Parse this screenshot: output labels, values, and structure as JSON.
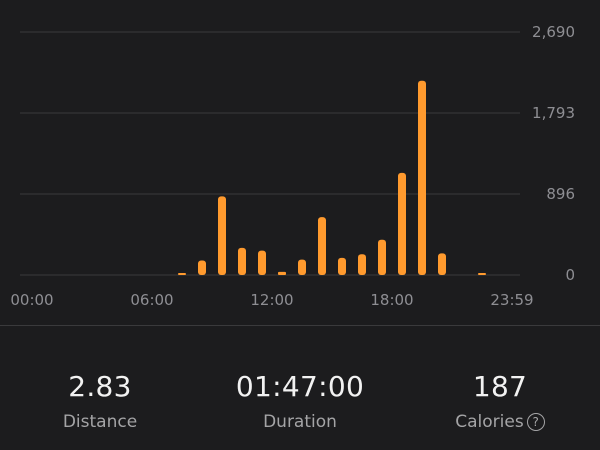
{
  "chart_data": {
    "type": "bar",
    "x_tick_labels": [
      "00:00",
      "06:00",
      "12:00",
      "18:00",
      "23:59"
    ],
    "y_tick_labels": [
      "2,690",
      "1,793",
      "896",
      "0"
    ],
    "y_ticks": [
      2690,
      1793,
      896,
      0
    ],
    "ylim": [
      0,
      2690
    ],
    "xlim": [
      0,
      24
    ],
    "grid": true,
    "bar_color": "#ff9a2e",
    "bars": [
      {
        "hour": 7,
        "value": 20
      },
      {
        "hour": 8,
        "value": 160
      },
      {
        "hour": 9,
        "value": 870
      },
      {
        "hour": 10,
        "value": 300
      },
      {
        "hour": 11,
        "value": 270
      },
      {
        "hour": 12,
        "value": 35
      },
      {
        "hour": 13,
        "value": 170
      },
      {
        "hour": 14,
        "value": 640
      },
      {
        "hour": 15,
        "value": 190
      },
      {
        "hour": 16,
        "value": 230
      },
      {
        "hour": 17,
        "value": 390
      },
      {
        "hour": 18,
        "value": 1130
      },
      {
        "hour": 19,
        "value": 2150
      },
      {
        "hour": 20,
        "value": 240
      },
      {
        "hour": 22,
        "value": 10
      }
    ]
  },
  "stats": {
    "distance": {
      "value": "2.83",
      "label": "Distance"
    },
    "duration": {
      "value": "01:47:00",
      "label": "Duration"
    },
    "calories": {
      "value": "187",
      "label": "Calories"
    }
  },
  "icons": {
    "calories_help": "question-circle-icon"
  },
  "colors": {
    "background": "#1c1c1e",
    "accent": "#ff9a2e",
    "gridline": "#3a3a3c"
  }
}
